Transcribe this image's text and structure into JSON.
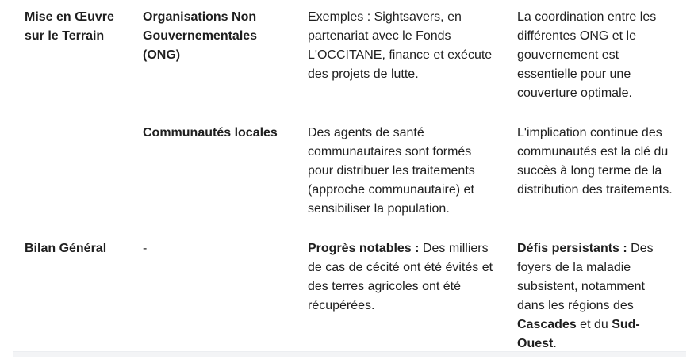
{
  "table": {
    "rows": [
      [
        "Mise en Œuvre sur le Terrain",
        "Organisations Non Gouvernementales (ONG)",
        "Exemples : Sightsavers, en partenariat avec le Fonds L'OCCITANE, finance et exécute des projets de lutte.",
        "La coordination entre les différentes ONG et le gouvernement est essentielle pour une couverture optimale."
      ],
      [
        "Communautés locales",
        "Des agents de santé communautaires sont formés pour distribuer les traitements (approche communautaire) et sensibiliser la population.",
        "L'implication continue des communautés est la clé du succès à long terme de la distribution des traitements."
      ],
      [
        "Bilan Général",
        "-",
        [
          "Progrès notables :",
          " Des milliers de cas de cécité ont été évités et des terres agricoles ont été récupérées."
        ],
        [
          "Défis persistants :",
          " Des foyers de la maladie subsistent, notamment dans les régions des ",
          "Cascades",
          " et du ",
          "Sud-Ouest",
          "."
        ]
      ]
    ]
  }
}
